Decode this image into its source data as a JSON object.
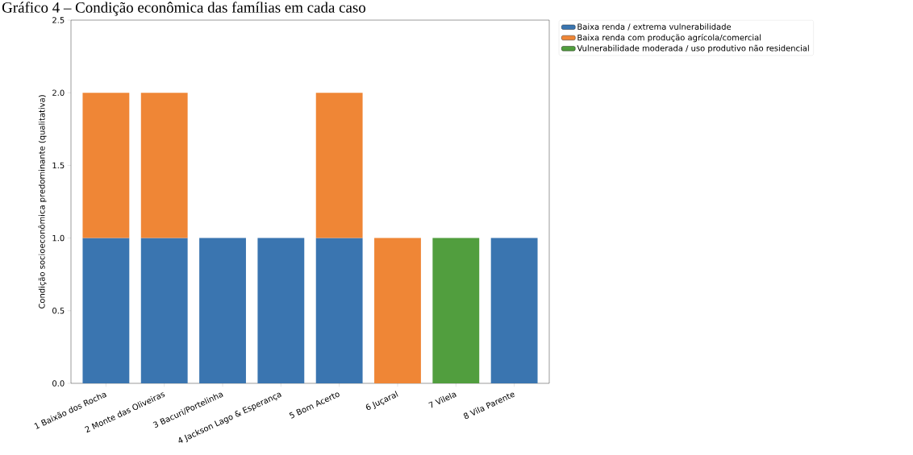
{
  "chart_data": {
    "type": "bar",
    "title": "Gráfico 4 – Condição econômica das famílias em cada caso",
    "ylabel": "Condição socioeconômica predominante (qualitativa)",
    "categories": [
      "1 Baixão dos Rocha",
      "2 Monte das Oliveiras",
      "3 Bacuri/Portelinha",
      "4 Jackson Lago & Esperança",
      "5 Bom Acerto",
      "6 Juçaral",
      "7 Vilela",
      "8 Vila Parente"
    ],
    "stacked": true,
    "series": [
      {
        "name": "Baixa renda / extrema vulnerabilidade",
        "color": "#3a75b0",
        "values": [
          1,
          1,
          1,
          1,
          1,
          0,
          0,
          1
        ]
      },
      {
        "name": "Baixa renda com produção agrícola/comercial",
        "color": "#ef8636",
        "values": [
          1,
          1,
          0,
          0,
          1,
          1,
          0,
          0
        ]
      },
      {
        "name": "Vulnerabilidade moderada / uso produtivo não residencial",
        "color": "#519e3e",
        "values": [
          0,
          0,
          0,
          0,
          0,
          0,
          1,
          0
        ]
      }
    ],
    "ylim": [
      0,
      2.5
    ],
    "yticks": [
      {
        "value": 0,
        "label": "0.0"
      },
      {
        "value": 0.5,
        "label": "0.5"
      },
      {
        "value": 1,
        "label": "1.0"
      },
      {
        "value": 1.5,
        "label": "1.5"
      },
      {
        "value": 2,
        "label": "2.0"
      },
      {
        "value": 2.5,
        "label": "2.5"
      }
    ],
    "legend": "right"
  }
}
